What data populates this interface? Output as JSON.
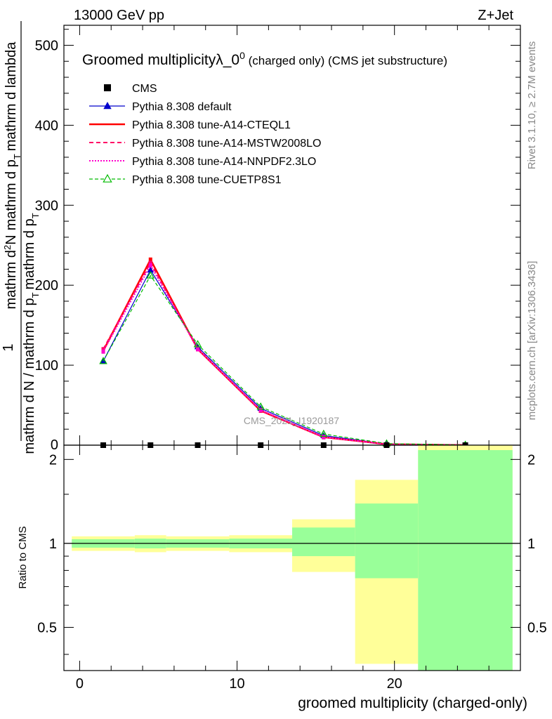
{
  "header": {
    "left": "13000 GeV pp",
    "right": "Z+Jet"
  },
  "side_labels": {
    "rivet": "Rivet 3.1.10, ≥ 2.7M events",
    "mcplots": "mcplots.cern.ch [arXiv:1306.3436]"
  },
  "chart_data": [
    {
      "type": "line",
      "title": "Groomed multiplicityλ_0",
      "title_superscript": "0",
      "title_suffix": " (charged only) (CMS jet substructure)",
      "watermark": "CMS_2021_I1920187",
      "ylabel_top": "1",
      "ylabel_sub": "T",
      "ylabel_num_main": "mathrm d",
      "ylabel_num_sup": "2",
      "ylabel_num_end": "N",
      "ylabel_den_a": "mathrm d N / mathrm d p",
      "ylabel_den_b": "mathrm d p",
      "ylabel_den_c": "mathrm d lambda",
      "xlim": [
        -1,
        28
      ],
      "ylim": [
        0,
        525
      ],
      "yticks": [
        100,
        200,
        300,
        400,
        500
      ],
      "yticks_minor_step": 20,
      "legend_position": "top-left",
      "x": [
        1.5,
        4.5,
        7.5,
        11.5,
        15.5,
        19.5,
        24.5
      ],
      "series": [
        {
          "name": "CMS",
          "style": "data",
          "color": "#000000",
          "values": [
            0,
            0,
            0,
            0,
            0,
            0,
            0
          ]
        },
        {
          "name": "Pythia 8.308 default",
          "style": "solid-triangle",
          "color": "#0000cc",
          "values": [
            105,
            219,
            123,
            46,
            12,
            1.5,
            0.2
          ]
        },
        {
          "name": "Pythia 8.308 tune-A14-CTEQL1",
          "style": "solid-thick",
          "color": "#ff0000",
          "values": [
            118,
            232,
            120,
            43,
            10,
            1.2,
            0.1
          ]
        },
        {
          "name": "Pythia 8.308 tune-A14-MSTW2008LO",
          "style": "dashed",
          "color": "#ff0066",
          "values": [
            120,
            228,
            121,
            43,
            10,
            1.2,
            0.1
          ]
        },
        {
          "name": "Pythia 8.308 tune-A14-NNPDF2.3LO",
          "style": "dotted",
          "color": "#ff00cc",
          "values": [
            117,
            225,
            120,
            44,
            10,
            1.2,
            0.1
          ]
        },
        {
          "name": "Pythia 8.308 tune-CUETP8S1",
          "style": "dashed-triangle-open",
          "color": "#00bb00",
          "values": [
            105,
            212,
            126,
            48,
            14,
            2.0,
            0.3
          ]
        }
      ]
    },
    {
      "type": "area",
      "ylabel": "Ratio to CMS",
      "xlabel": "groomed multiplicity (charged-only)",
      "xlim": [
        -1,
        28
      ],
      "ylim": [
        0.35,
        2.25
      ],
      "xticks": [
        0,
        10,
        20
      ],
      "xticks_minor_step": 2,
      "yticks": [
        0.5,
        1,
        2
      ],
      "yticks_minor": [
        0.4,
        0.6,
        0.7,
        0.8,
        0.9,
        1.5
      ],
      "reference_line": 1,
      "bins": [
        {
          "lo": -0.5,
          "hi": 3.5,
          "yellow": [
            0.94,
            1.06
          ],
          "green": [
            0.965,
            1.035
          ]
        },
        {
          "lo": 3.5,
          "hi": 5.5,
          "yellow": [
            0.93,
            1.07
          ],
          "green": [
            0.96,
            1.04
          ]
        },
        {
          "lo": 5.5,
          "hi": 9.5,
          "yellow": [
            0.94,
            1.06
          ],
          "green": [
            0.965,
            1.035
          ]
        },
        {
          "lo": 9.5,
          "hi": 13.5,
          "yellow": [
            0.93,
            1.07
          ],
          "green": [
            0.96,
            1.04
          ]
        },
        {
          "lo": 13.5,
          "hi": 17.5,
          "yellow": [
            0.79,
            1.22
          ],
          "green": [
            0.9,
            1.14
          ]
        },
        {
          "lo": 17.5,
          "hi": 21.5,
          "yellow": [
            0.37,
            1.69
          ],
          "green": [
            0.75,
            1.39
          ]
        },
        {
          "lo": 21.5,
          "hi": 27.5,
          "yellow": [
            0.35,
            2.25
          ],
          "green": [
            0.35,
            2.16
          ]
        }
      ],
      "colors": {
        "yellow": "#ffff99",
        "green": "#99ff99"
      }
    }
  ]
}
